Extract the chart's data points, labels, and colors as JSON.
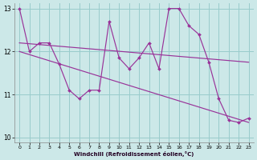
{
  "xlabel": "Windchill (Refroidissement éolien,°C)",
  "bg_color": "#cce8e8",
  "line_color": "#993399",
  "grid_color": "#99cccc",
  "x": [
    0,
    1,
    2,
    3,
    4,
    5,
    6,
    7,
    8,
    9,
    10,
    11,
    12,
    13,
    14,
    15,
    16,
    17,
    18,
    19,
    20,
    21,
    22,
    23
  ],
  "line1": [
    13.0,
    12.0,
    12.2,
    12.2,
    11.7,
    11.1,
    10.9,
    11.1,
    11.1,
    12.7,
    11.85,
    11.6,
    11.85,
    12.2,
    11.6,
    13.0,
    13.0,
    12.6,
    12.4,
    11.75,
    10.9,
    10.4,
    10.35,
    10.45
  ],
  "trend1_x": [
    0,
    23
  ],
  "trend1_y": [
    12.2,
    11.75
  ],
  "trend2_x": [
    0,
    23
  ],
  "trend2_y": [
    12.0,
    10.35
  ],
  "ylim": [
    9.88,
    13.12
  ],
  "yticks": [
    10,
    11,
    12,
    13
  ],
  "xticks": [
    0,
    1,
    2,
    3,
    4,
    5,
    6,
    7,
    8,
    9,
    10,
    11,
    12,
    13,
    14,
    15,
    16,
    17,
    18,
    19,
    20,
    21,
    22,
    23
  ]
}
